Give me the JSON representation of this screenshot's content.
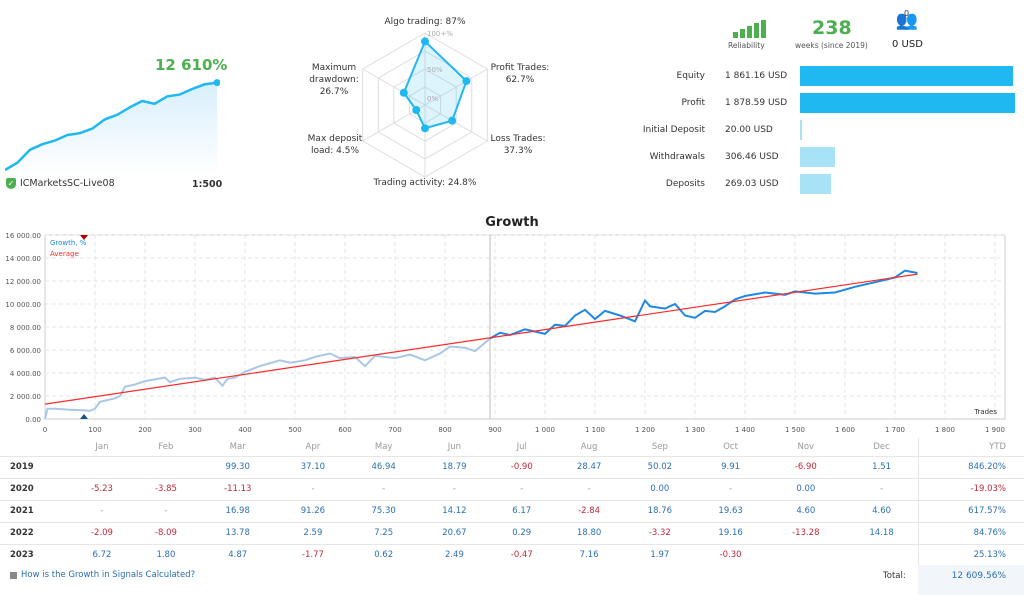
{
  "account": {
    "growth": "12 610%",
    "server": "ICMarketsSC-Live08",
    "leverage": "1:500",
    "sparkline": [
      0,
      8,
      22,
      28,
      32,
      38,
      40,
      45,
      55,
      60,
      68,
      75,
      72,
      80,
      82,
      88,
      93,
      95
    ]
  },
  "radar": {
    "scale_labels": [
      "100+%",
      "50%",
      "0%"
    ],
    "axes": [
      {
        "label": "Algo trading: 87%",
        "value": 87
      },
      {
        "label": "Profit Trades: 62.7%",
        "value": 62.7
      },
      {
        "label": "Loss Trades: 37.3%",
        "value": 37.3
      },
      {
        "label": "Trading activity: 24.8%",
        "value": 24.8
      },
      {
        "label": "Max deposit load: 4.5%",
        "value": 4.5
      },
      {
        "label": "Maximum drawdown: 26.7%",
        "value": 26.7
      }
    ]
  },
  "reliability": {
    "label": "Reliability",
    "bars_filled": 5,
    "bars_total": 5
  },
  "weeks": {
    "value": "238",
    "label": "weeks (since 2019)"
  },
  "subscribers": {
    "count": "0",
    "amount": "0 USD"
  },
  "stats": [
    {
      "name": "Equity",
      "value": "1 861.16 USD",
      "amount": 1861.16,
      "style": "dark"
    },
    {
      "name": "Profit",
      "value": "1 878.59 USD",
      "amount": 1878.59,
      "style": "dark"
    },
    {
      "name": "Initial Deposit",
      "value": "20.00 USD",
      "amount": 20,
      "style": "light"
    },
    {
      "name": "Withdrawals",
      "value": "306.46 USD",
      "amount": 306.46,
      "style": "light"
    },
    {
      "name": "Deposits",
      "value": "269.03 USD",
      "amount": 269.03,
      "style": "light"
    }
  ],
  "chart_data": {
    "type": "line",
    "title": "Growth",
    "xlabel": "Trades",
    "ylabel": "",
    "xlim": [
      0,
      1900
    ],
    "ylim": [
      0,
      16000
    ],
    "grid": true,
    "legend_placement": "top-left",
    "x_ticks": [
      "0",
      "100",
      "200",
      "300",
      "400",
      "500",
      "600",
      "700",
      "800",
      "900",
      "1 000",
      "1 100",
      "1 200",
      "1 300",
      "1 400",
      "1 500",
      "1 600",
      "1 700",
      "1 800",
      "1 900"
    ],
    "y_ticks": [
      "0.00",
      "2 000.00",
      "4 000.00",
      "6 000.00",
      "8 000.00",
      "10 000.00",
      "12 000.00",
      "14 000.00",
      "16 000.00"
    ],
    "series": [
      {
        "name": "Growth, %",
        "color": "#1e88e5",
        "history_color": "#a9c8e6",
        "history": [
          [
            0,
            0
          ],
          [
            5,
            900
          ],
          [
            20,
            900
          ],
          [
            50,
            800
          ],
          [
            80,
            750
          ],
          [
            90,
            700
          ],
          [
            100,
            900
          ],
          [
            110,
            1500
          ],
          [
            140,
            1800
          ],
          [
            150,
            2000
          ],
          [
            160,
            2800
          ],
          [
            180,
            3000
          ],
          [
            200,
            3300
          ],
          [
            240,
            3600
          ],
          [
            250,
            3200
          ],
          [
            270,
            3500
          ],
          [
            300,
            3600
          ],
          [
            320,
            3400
          ],
          [
            340,
            3600
          ],
          [
            355,
            2900
          ],
          [
            365,
            3500
          ],
          [
            380,
            3600
          ],
          [
            400,
            4100
          ],
          [
            430,
            4600
          ],
          [
            470,
            5100
          ],
          [
            490,
            4900
          ],
          [
            520,
            5100
          ],
          [
            540,
            5400
          ],
          [
            570,
            5700
          ],
          [
            590,
            5300
          ],
          [
            620,
            5400
          ],
          [
            640,
            4600
          ],
          [
            660,
            5500
          ],
          [
            700,
            5300
          ],
          [
            730,
            5600
          ],
          [
            760,
            5100
          ],
          [
            790,
            5700
          ],
          [
            810,
            6300
          ],
          [
            840,
            6200
          ],
          [
            860,
            5900
          ],
          [
            890,
            7000
          ]
        ],
        "recent": [
          [
            890,
            7000
          ],
          [
            910,
            7500
          ],
          [
            930,
            7300
          ],
          [
            960,
            7800
          ],
          [
            1000,
            7400
          ],
          [
            1020,
            8200
          ],
          [
            1040,
            8100
          ],
          [
            1060,
            9000
          ],
          [
            1080,
            9500
          ],
          [
            1100,
            8700
          ],
          [
            1120,
            9400
          ],
          [
            1150,
            9000
          ],
          [
            1180,
            8500
          ],
          [
            1200,
            10300
          ],
          [
            1210,
            9800
          ],
          [
            1240,
            9600
          ],
          [
            1260,
            10000
          ],
          [
            1280,
            9000
          ],
          [
            1300,
            8800
          ],
          [
            1320,
            9400
          ],
          [
            1340,
            9300
          ],
          [
            1360,
            9800
          ],
          [
            1380,
            10400
          ],
          [
            1400,
            10700
          ],
          [
            1440,
            11000
          ],
          [
            1480,
            10800
          ],
          [
            1500,
            11100
          ],
          [
            1540,
            10900
          ],
          [
            1580,
            11000
          ],
          [
            1620,
            11500
          ],
          [
            1660,
            11900
          ],
          [
            1700,
            12300
          ],
          [
            1720,
            12900
          ],
          [
            1745,
            12700
          ]
        ]
      },
      {
        "name": "Average",
        "color": "#ff2a2a",
        "points": [
          [
            0,
            1300
          ],
          [
            1745,
            12600
          ]
        ]
      }
    ]
  },
  "table": {
    "months": [
      "Jan",
      "Feb",
      "Mar",
      "Apr",
      "May",
      "Jun",
      "Jul",
      "Aug",
      "Sep",
      "Oct",
      "Nov",
      "Dec"
    ],
    "ytd_label": "YTD",
    "rows": [
      {
        "year": "2019",
        "cells": [
          "",
          "",
          "99.30",
          "37.10",
          "46.94",
          "18.79",
          "-0.90",
          "28.47",
          "50.02",
          "9.91",
          "-6.90",
          "1.51"
        ],
        "ytd": "846.20%"
      },
      {
        "year": "2020",
        "cells": [
          "-5.23",
          "-3.85",
          "-11.13",
          "-",
          "-",
          "-",
          "-",
          "-",
          "0.00",
          "-",
          "0.00",
          "-"
        ],
        "ytd": "-19.03%"
      },
      {
        "year": "2021",
        "cells": [
          "-",
          "-",
          "16.98",
          "91.26",
          "75.30",
          "14.12",
          "6.17",
          "-2.84",
          "18.76",
          "19.63",
          "4.60",
          "4.60"
        ],
        "ytd": "617.57%"
      },
      {
        "year": "2022",
        "cells": [
          "-2.09",
          "-8.09",
          "13.78",
          "2.59",
          "7.25",
          "20.67",
          "0.29",
          "18.80",
          "-3.32",
          "19.16",
          "-13.28",
          "14.18"
        ],
        "ytd": "84.76%"
      },
      {
        "year": "2023",
        "cells": [
          "6.72",
          "1.80",
          "4.87",
          "-1.77",
          "0.62",
          "2.49",
          "-0.47",
          "7.16",
          "1.97",
          "-0.30",
          "",
          ""
        ],
        "ytd": "25.13%"
      }
    ],
    "help_link": "How is the Growth in Signals Calculated?",
    "total_label": "Total:",
    "total": "12 609.56%"
  }
}
